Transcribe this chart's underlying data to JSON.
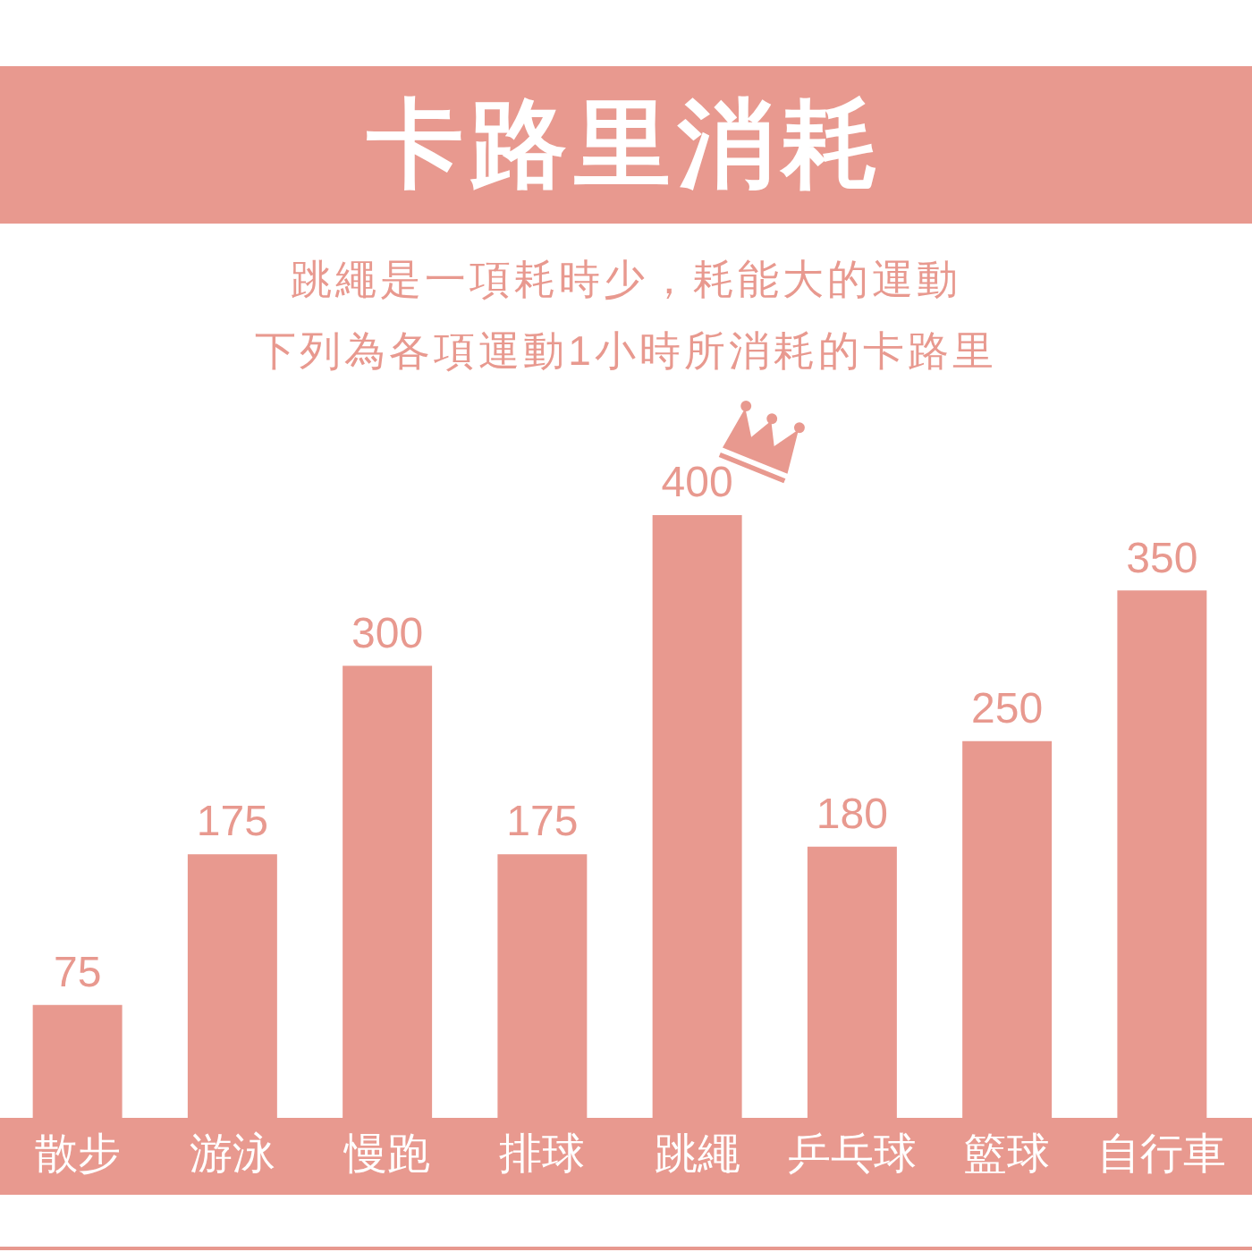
{
  "chart_data": {
    "type": "bar",
    "title": "卡路里消耗",
    "subtitle": "跳繩是一項耗時少，耗能大的運動",
    "annotations": [
      "下列為各項運動1小時所消耗的卡路里"
    ],
    "categories": [
      "散步",
      "游泳",
      "慢跑",
      "排球",
      "跳繩",
      "乒乓球",
      "籃球",
      "自行車"
    ],
    "values": [
      75,
      175,
      300,
      175,
      400,
      180,
      250,
      350
    ],
    "color": "#e8998f",
    "data_labels": true,
    "tick_labels": "x"
  }
}
